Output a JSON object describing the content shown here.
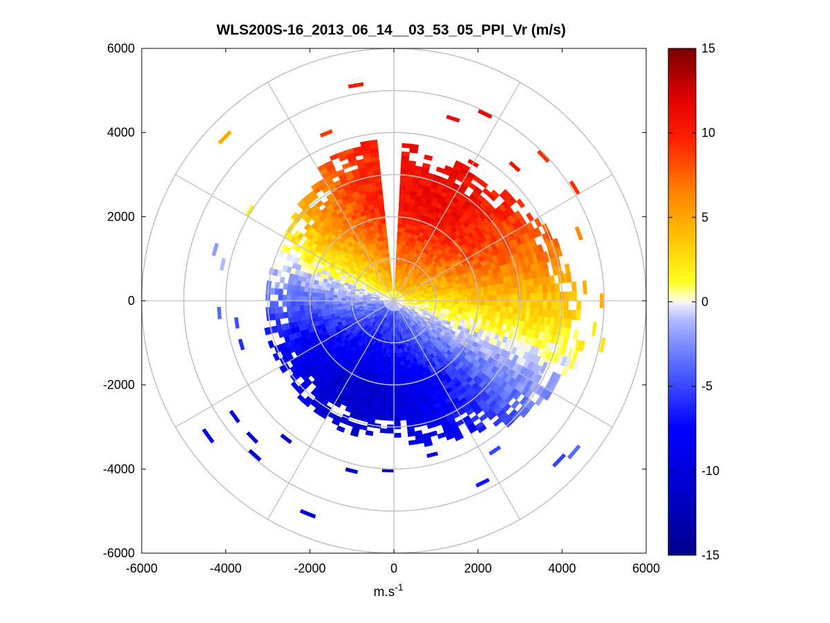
{
  "chart_data": {
    "type": "heatmap",
    "subtype": "polar-ppi",
    "title": "WLS200S-16_2013_06_14__03_53_05_PPI_Vr (m/s)",
    "xlabel": "m.s",
    "xlabel_superscript": "-1",
    "ylabel": "",
    "xlim": [
      -6000,
      6000
    ],
    "ylim": [
      -6000,
      6000
    ],
    "x_ticks": [
      -6000,
      -4000,
      -2000,
      0,
      2000,
      4000,
      6000
    ],
    "x_tick_labels": [
      "-6000",
      "-4000",
      "-2000",
      "0",
      "2000",
      "4000",
      "6000"
    ],
    "y_ticks": [
      6000,
      4000,
      2000,
      0,
      -2000,
      -4000,
      -6000
    ],
    "y_tick_labels": [
      "6000",
      "4000",
      "2000",
      "0",
      "-2000",
      "-4000",
      "-6000"
    ],
    "range_rings_m": [
      1000,
      2000,
      3000,
      4000,
      5000,
      6000
    ],
    "spokes_deg": [
      0,
      30,
      60,
      90,
      120,
      150,
      180,
      210,
      240,
      270,
      300,
      330
    ],
    "colorbar": {
      "min": -15,
      "max": 15,
      "ticks": [
        15,
        10,
        5,
        0,
        -5,
        -10,
        -15
      ],
      "tick_labels": [
        "15",
        "10",
        "5",
        "0",
        "-5",
        "-10",
        "-15"
      ],
      "colormap": "blue-white-yellow-red"
    },
    "field_description": [
      {
        "sector": "north-east",
        "value_range": [
          0,
          13
        ]
      },
      {
        "sector": "north-west",
        "value_range": [
          0,
          11
        ]
      },
      {
        "sector": "south",
        "value_range": [
          -9,
          0
        ]
      }
    ]
  }
}
